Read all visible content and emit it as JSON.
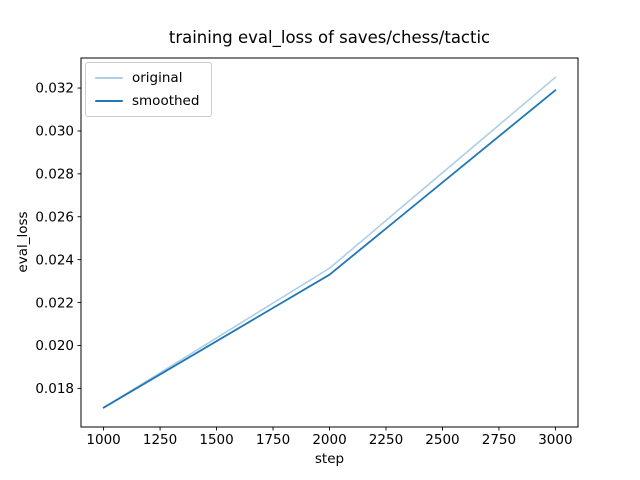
{
  "chart_data": {
    "type": "line",
    "title": "training eval_loss of saves/chess/tactic",
    "xlabel": "step",
    "ylabel": "eval_loss",
    "x": [
      1000,
      2000,
      3000
    ],
    "series": [
      {
        "name": "original",
        "color": "#aecde8",
        "linewidth": 1.6,
        "values": [
          0.0171,
          0.0236,
          0.0325
        ]
      },
      {
        "name": "smoothed",
        "color": "#1f77b4",
        "linewidth": 1.8,
        "values": [
          0.0171,
          0.0233,
          0.0319
        ]
      }
    ],
    "xlim": [
      900,
      3100
    ],
    "ylim": [
      0.0162,
      0.0334
    ],
    "xticks": [
      1000,
      1250,
      1500,
      1750,
      2000,
      2250,
      2500,
      2750,
      3000
    ],
    "yticks": [
      0.018,
      0.02,
      0.022,
      0.024,
      0.026,
      0.028,
      0.03,
      0.032
    ],
    "ytick_decimals": 3,
    "grid": false,
    "legend_position": "upper-left",
    "colors": {
      "background": "#ffffff",
      "spine": "#000000",
      "tick": "#000000",
      "text": "#000000",
      "legend_border": "#cccccc"
    }
  }
}
